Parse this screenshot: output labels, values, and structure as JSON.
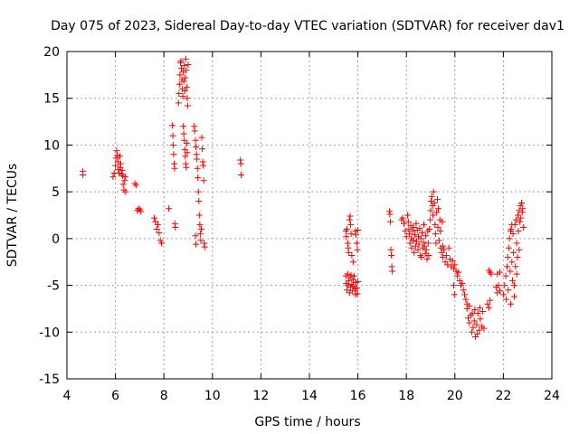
{
  "chart_data": {
    "type": "scatter",
    "title": "Day 075 of 2023, Sidereal Day-to-day VTEC variation (SDTVAR) for receiver dav1",
    "xlabel": "GPS time / hours",
    "ylabel": "SDTVAR / TECUs",
    "xlim": [
      4,
      24
    ],
    "ylim": [
      -15,
      20
    ],
    "xticks": [
      4,
      6,
      8,
      10,
      12,
      14,
      16,
      18,
      20,
      22,
      24
    ],
    "yticks": [
      -15,
      -10,
      -5,
      0,
      5,
      10,
      15,
      20
    ],
    "grid": true,
    "marker": "+",
    "colors": {
      "series": "#ff0000",
      "axis": "#000000",
      "grid": "#a0a0a0"
    },
    "series": [
      {
        "name": "SDTVAR",
        "points": [
          [
            4.65,
            7.2
          ],
          [
            4.66,
            6.8
          ],
          [
            5.9,
            6.6
          ],
          [
            5.95,
            7.0
          ],
          [
            6.0,
            7.8
          ],
          [
            6.02,
            8.6
          ],
          [
            6.05,
            9.4
          ],
          [
            6.08,
            8.9
          ],
          [
            6.1,
            8.2
          ],
          [
            6.12,
            7.4
          ],
          [
            6.15,
            7.0
          ],
          [
            6.18,
            8.8
          ],
          [
            6.2,
            7.6
          ],
          [
            6.22,
            8.0
          ],
          [
            6.25,
            6.9
          ],
          [
            6.28,
            7.3
          ],
          [
            6.3,
            6.7
          ],
          [
            6.32,
            5.8
          ],
          [
            6.35,
            5.2
          ],
          [
            6.38,
            6.2
          ],
          [
            6.4,
            6.6
          ],
          [
            6.42,
            5.0
          ],
          [
            6.8,
            5.9
          ],
          [
            6.85,
            5.7
          ],
          [
            6.9,
            3.0
          ],
          [
            6.95,
            3.2
          ],
          [
            7.0,
            3.1
          ],
          [
            7.05,
            2.9
          ],
          [
            7.6,
            2.2
          ],
          [
            7.65,
            1.8
          ],
          [
            7.7,
            1.0
          ],
          [
            7.75,
            1.5
          ],
          [
            7.8,
            0.6
          ],
          [
            7.85,
            -0.2
          ],
          [
            7.9,
            -0.5
          ],
          [
            8.2,
            3.2
          ],
          [
            8.35,
            12.1
          ],
          [
            8.37,
            11.0
          ],
          [
            8.38,
            10.0
          ],
          [
            8.4,
            9.0
          ],
          [
            8.42,
            8.0
          ],
          [
            8.44,
            7.5
          ],
          [
            8.45,
            1.6
          ],
          [
            8.47,
            1.2
          ],
          [
            8.6,
            14.5
          ],
          [
            8.62,
            15.5
          ],
          [
            8.64,
            16.5
          ],
          [
            8.66,
            17.5
          ],
          [
            8.68,
            18.8
          ],
          [
            8.7,
            19.0
          ],
          [
            8.72,
            18.2
          ],
          [
            8.74,
            17.0
          ],
          [
            8.76,
            16.0
          ],
          [
            8.78,
            15.2
          ],
          [
            8.8,
            17.8
          ],
          [
            8.82,
            16.8
          ],
          [
            8.84,
            18.5
          ],
          [
            8.86,
            15.8
          ],
          [
            8.88,
            17.2
          ],
          [
            8.9,
            19.2
          ],
          [
            8.92,
            18.0
          ],
          [
            8.94,
            16.2
          ],
          [
            8.96,
            15.0
          ],
          [
            8.98,
            14.2
          ],
          [
            9.0,
            18.6
          ],
          [
            8.8,
            12.0
          ],
          [
            8.82,
            11.2
          ],
          [
            8.84,
            10.5
          ],
          [
            8.86,
            9.5
          ],
          [
            8.88,
            8.8
          ],
          [
            8.9,
            8.0
          ],
          [
            8.92,
            7.6
          ],
          [
            8.94,
            10.2
          ],
          [
            8.96,
            9.2
          ],
          [
            9.25,
            12.0
          ],
          [
            9.27,
            11.5
          ],
          [
            9.3,
            10.5
          ],
          [
            9.32,
            9.8
          ],
          [
            9.34,
            9.0
          ],
          [
            9.36,
            8.5
          ],
          [
            9.38,
            7.5
          ],
          [
            9.4,
            6.5
          ],
          [
            9.42,
            5.0
          ],
          [
            9.44,
            4.0
          ],
          [
            9.46,
            2.5
          ],
          [
            9.48,
            1.5
          ],
          [
            9.5,
            0.5
          ],
          [
            9.52,
            -0.2
          ],
          [
            9.54,
            1.0
          ],
          [
            9.56,
            10.8
          ],
          [
            9.58,
            9.6
          ],
          [
            9.6,
            8.2
          ],
          [
            9.62,
            7.8
          ],
          [
            9.64,
            6.2
          ],
          [
            9.66,
            -0.5
          ],
          [
            9.68,
            -0.9
          ],
          [
            9.3,
            0.3
          ],
          [
            9.32,
            -0.6
          ],
          [
            11.15,
            8.4
          ],
          [
            11.17,
            8.0
          ],
          [
            11.18,
            6.8
          ],
          [
            15.5,
            -4.0
          ],
          [
            15.52,
            -4.8
          ],
          [
            15.55,
            -5.5
          ],
          [
            15.58,
            -3.8
          ],
          [
            15.6,
            -5.0
          ],
          [
            15.62,
            -4.5
          ],
          [
            15.65,
            -5.8
          ],
          [
            15.68,
            -4.2
          ],
          [
            15.7,
            -5.2
          ],
          [
            15.72,
            -3.9
          ],
          [
            15.75,
            -4.9
          ],
          [
            15.78,
            -5.6
          ],
          [
            15.8,
            -4.4
          ],
          [
            15.82,
            -5.1
          ],
          [
            15.85,
            -4.0
          ],
          [
            15.88,
            -5.4
          ],
          [
            15.9,
            -6.0
          ],
          [
            15.92,
            -4.7
          ],
          [
            15.95,
            -5.3
          ],
          [
            15.98,
            -5.9
          ],
          [
            16.0,
            -4.6
          ],
          [
            15.5,
            0.8
          ],
          [
            15.52,
            0.2
          ],
          [
            15.55,
            1.0
          ],
          [
            15.58,
            -0.5
          ],
          [
            15.6,
            -1.0
          ],
          [
            15.62,
            -1.5
          ],
          [
            15.65,
            2.0
          ],
          [
            15.68,
            2.4
          ],
          [
            15.7,
            1.5
          ],
          [
            15.72,
            0.5
          ],
          [
            15.75,
            -1.8
          ],
          [
            15.8,
            -2.5
          ],
          [
            15.9,
            0.8
          ],
          [
            15.92,
            0.4
          ],
          [
            15.95,
            -0.5
          ],
          [
            15.98,
            -1.2
          ],
          [
            16.0,
            0.9
          ],
          [
            17.3,
            2.9
          ],
          [
            17.32,
            2.6
          ],
          [
            17.34,
            1.8
          ],
          [
            17.36,
            -1.2
          ],
          [
            17.38,
            -1.8
          ],
          [
            17.4,
            -3.0
          ],
          [
            17.42,
            -3.5
          ],
          [
            17.8,
            2.0
          ],
          [
            17.85,
            2.2
          ],
          [
            17.9,
            1.6
          ],
          [
            17.95,
            0.8
          ],
          [
            18.0,
            0.2
          ],
          [
            18.05,
            2.5
          ],
          [
            18.08,
            1.8
          ],
          [
            18.1,
            1.0
          ],
          [
            18.12,
            0.5
          ],
          [
            18.15,
            -0.5
          ],
          [
            18.18,
            1.4
          ],
          [
            18.2,
            0.0
          ],
          [
            18.22,
            -1.0
          ],
          [
            18.25,
            0.8
          ],
          [
            18.28,
            -0.2
          ],
          [
            18.3,
            1.2
          ],
          [
            18.32,
            -1.5
          ],
          [
            18.35,
            0.4
          ],
          [
            18.38,
            -0.8
          ],
          [
            18.4,
            1.6
          ],
          [
            18.42,
            -0.3
          ],
          [
            18.45,
            0.9
          ],
          [
            18.48,
            -1.2
          ],
          [
            18.5,
            0.2
          ],
          [
            18.52,
            -0.6
          ],
          [
            18.55,
            1.1
          ],
          [
            18.58,
            -1.8
          ],
          [
            18.6,
            0.0
          ],
          [
            18.62,
            -2.0
          ],
          [
            18.65,
            0.6
          ],
          [
            18.68,
            -1.0
          ],
          [
            18.7,
            -0.4
          ],
          [
            18.72,
            1.5
          ],
          [
            18.75,
            -0.8
          ],
          [
            18.78,
            -1.6
          ],
          [
            18.8,
            0.3
          ],
          [
            18.82,
            -1.2
          ],
          [
            18.85,
            -2.2
          ],
          [
            18.88,
            0.8
          ],
          [
            18.9,
            -0.5
          ],
          [
            18.92,
            -1.8
          ],
          [
            18.95,
            1.0
          ],
          [
            18.98,
            2.0
          ],
          [
            19.0,
            3.0
          ],
          [
            19.02,
            4.0
          ],
          [
            19.05,
            4.5
          ],
          [
            19.08,
            3.5
          ],
          [
            19.1,
            2.5
          ],
          [
            19.12,
            5.0
          ],
          [
            19.15,
            3.8
          ],
          [
            19.18,
            1.5
          ],
          [
            19.2,
            0.5
          ],
          [
            19.22,
            -0.5
          ],
          [
            19.25,
            2.8
          ],
          [
            19.28,
            4.2
          ],
          [
            19.3,
            1.2
          ],
          [
            19.32,
            3.2
          ],
          [
            19.35,
            -0.2
          ],
          [
            19.38,
            2.0
          ],
          [
            19.4,
            0.8
          ],
          [
            19.42,
            -1.0
          ],
          [
            19.45,
            -1.5
          ],
          [
            19.48,
            1.8
          ],
          [
            19.5,
            -0.8
          ],
          [
            19.5,
            -2.0
          ],
          [
            19.55,
            -1.2
          ],
          [
            19.6,
            -2.5
          ],
          [
            19.65,
            -1.8
          ],
          [
            19.7,
            -2.8
          ],
          [
            19.75,
            -1.0
          ],
          [
            19.8,
            -2.2
          ],
          [
            19.85,
            -3.0
          ],
          [
            19.9,
            -2.4
          ],
          [
            19.95,
            -3.2
          ],
          [
            20.0,
            -2.8
          ],
          [
            20.05,
            -3.5
          ],
          [
            20.1,
            -4.0
          ],
          [
            20.15,
            -3.6
          ],
          [
            20.2,
            -4.5
          ],
          [
            20.25,
            -5.0
          ],
          [
            20.3,
            -4.8
          ],
          [
            20.35,
            -5.5
          ],
          [
            20.4,
            -6.0
          ],
          [
            20.45,
            -6.5
          ],
          [
            20.5,
            -7.0
          ],
          [
            19.95,
            -5.0
          ],
          [
            19.98,
            -6.0
          ],
          [
            20.5,
            -7.5
          ],
          [
            20.55,
            -8.5
          ],
          [
            20.6,
            -9.0
          ],
          [
            20.65,
            -8.2
          ],
          [
            20.7,
            -10.0
          ],
          [
            20.75,
            -9.5
          ],
          [
            20.8,
            -8.8
          ],
          [
            20.85,
            -10.5
          ],
          [
            20.9,
            -9.2
          ],
          [
            20.95,
            -8.0
          ],
          [
            21.0,
            -9.8
          ],
          [
            21.05,
            -8.6
          ],
          [
            21.1,
            -9.4
          ],
          [
            21.15,
            -7.8
          ],
          [
            21.2,
            -9.6
          ],
          [
            20.6,
            -7.2
          ],
          [
            20.72,
            -8.0
          ],
          [
            20.82,
            -7.6
          ],
          [
            20.92,
            -10.2
          ],
          [
            21.02,
            -7.4
          ],
          [
            21.4,
            -3.4
          ],
          [
            21.45,
            -3.6
          ],
          [
            21.5,
            -3.8
          ],
          [
            21.35,
            -7.0
          ],
          [
            21.4,
            -7.4
          ],
          [
            21.45,
            -6.6
          ],
          [
            21.7,
            -5.2
          ],
          [
            21.75,
            -5.8
          ],
          [
            21.8,
            -5.0
          ],
          [
            21.85,
            -5.6
          ],
          [
            21.75,
            -3.8
          ],
          [
            21.85,
            -3.6
          ],
          [
            22.0,
            -6.0
          ],
          [
            22.05,
            -5.0
          ],
          [
            22.1,
            -4.0
          ],
          [
            22.12,
            -6.5
          ],
          [
            22.15,
            -3.0
          ],
          [
            22.18,
            -2.0
          ],
          [
            22.2,
            -5.5
          ],
          [
            22.22,
            -1.0
          ],
          [
            22.25,
            0.0
          ],
          [
            22.28,
            -3.5
          ],
          [
            22.3,
            -7.0
          ],
          [
            22.32,
            1.0
          ],
          [
            22.35,
            -2.5
          ],
          [
            22.38,
            -4.5
          ],
          [
            22.4,
            0.5
          ],
          [
            22.42,
            -1.5
          ],
          [
            22.45,
            -5.0
          ],
          [
            22.48,
            1.5
          ],
          [
            22.5,
            -3.0
          ],
          [
            22.52,
            2.0
          ],
          [
            22.55,
            -0.5
          ],
          [
            22.58,
            -2.0
          ],
          [
            22.6,
            2.5
          ],
          [
            22.62,
            0.8
          ],
          [
            22.65,
            3.0
          ],
          [
            22.68,
            1.8
          ],
          [
            22.7,
            3.5
          ],
          [
            22.72,
            2.2
          ],
          [
            22.75,
            3.8
          ],
          [
            22.78,
            2.8
          ],
          [
            22.8,
            3.2
          ],
          [
            22.82,
            1.2
          ],
          [
            22.3,
            0.8
          ],
          [
            22.35,
            1.5
          ],
          [
            22.45,
            -6.2
          ],
          [
            22.55,
            -3.8
          ],
          [
            22.65,
            -1.2
          ]
        ]
      }
    ]
  }
}
